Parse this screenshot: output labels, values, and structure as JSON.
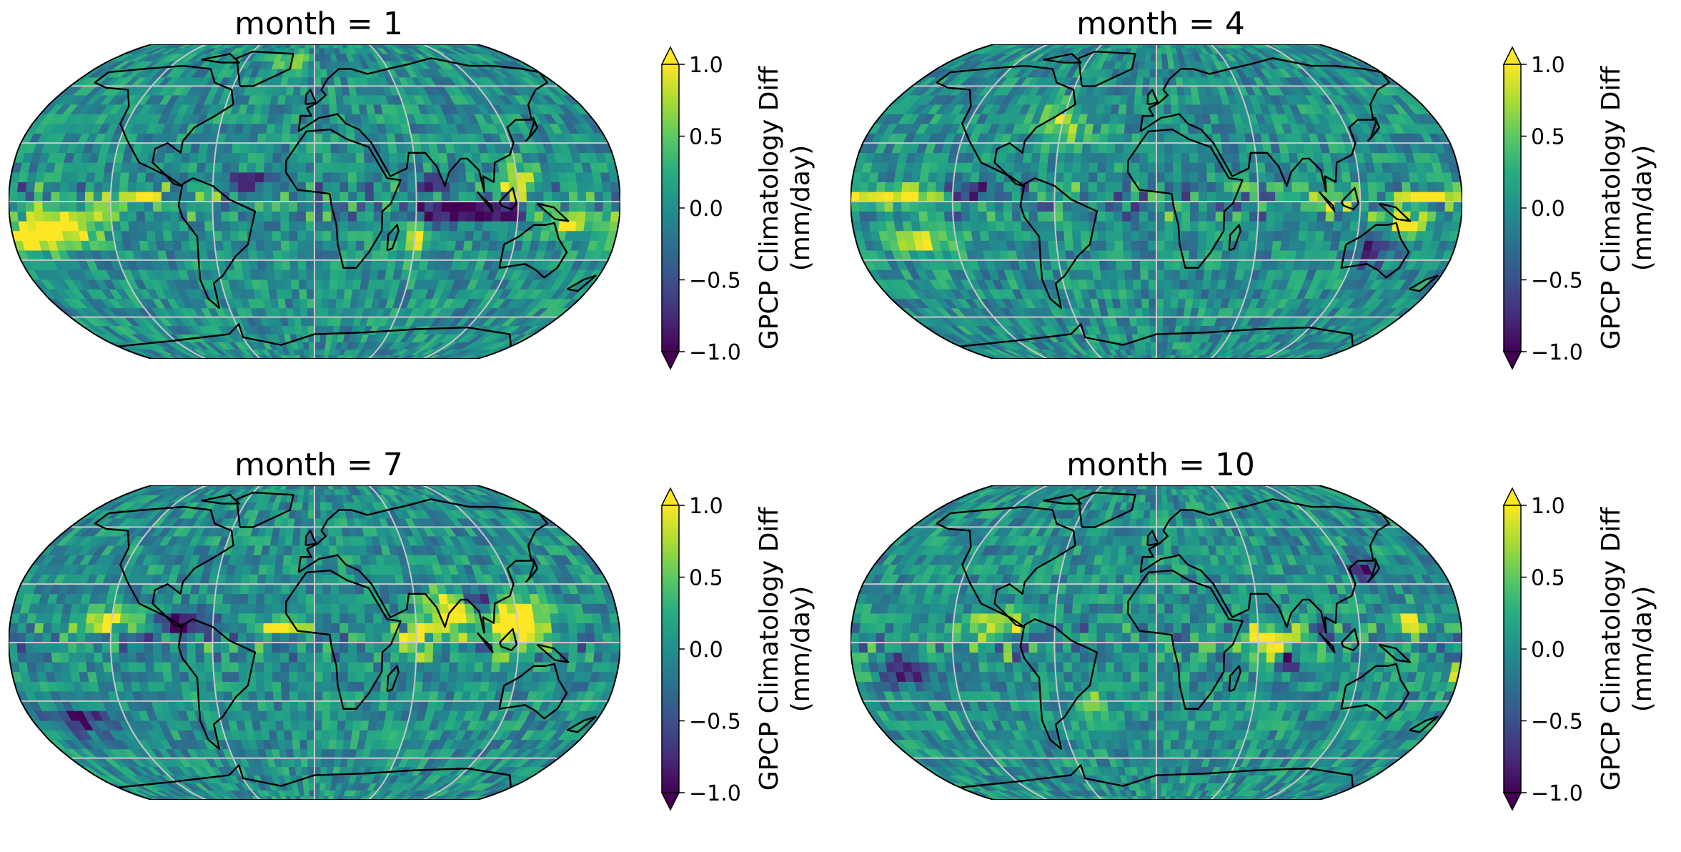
{
  "figure": {
    "panels": [
      {
        "id": "m1",
        "title": "month = 1",
        "seed": 11,
        "anomalies": [
          {
            "lon": -150,
            "lat": -12,
            "amp": 1.4,
            "rlon": 16,
            "rlat": 6
          },
          {
            "lon": -170,
            "lat": -20,
            "amp": 1.2,
            "rlon": 10,
            "rlat": 5
          },
          {
            "lon": -110,
            "lat": 2,
            "amp": 1.0,
            "rlon": 12,
            "rlat": 3
          },
          {
            "lon": 60,
            "lat": -20,
            "amp": 1.1,
            "rlon": 5,
            "rlat": 6
          },
          {
            "lon": 90,
            "lat": -5,
            "amp": -1.3,
            "rlon": 22,
            "rlat": 4
          },
          {
            "lon": 120,
            "lat": 10,
            "amp": 1.0,
            "rlon": 8,
            "rlat": 6
          },
          {
            "lon": 150,
            "lat": -10,
            "amp": 0.9,
            "rlon": 14,
            "rlat": 5
          },
          {
            "lon": -40,
            "lat": 10,
            "amp": -0.9,
            "rlon": 10,
            "rlat": 3
          },
          {
            "lon": 70,
            "lat": 8,
            "amp": -1.0,
            "rlon": 10,
            "rlat": 3
          },
          {
            "lon": -20,
            "lat": 75,
            "amp": 0.8,
            "rlon": 8,
            "rlat": 4
          }
        ]
      },
      {
        "id": "m4",
        "title": "month = 4",
        "seed": 23,
        "anomalies": [
          {
            "lon": -150,
            "lat": 3,
            "amp": 1.1,
            "rlon": 20,
            "rlat": 3
          },
          {
            "lon": 160,
            "lat": 3,
            "amp": 1.0,
            "rlon": 14,
            "rlat": 3
          },
          {
            "lon": 150,
            "lat": -12,
            "amp": 1.3,
            "rlon": 8,
            "rlat": 5
          },
          {
            "lon": -140,
            "lat": -20,
            "amp": 0.9,
            "rlon": 14,
            "rlat": 5
          },
          {
            "lon": -110,
            "lat": 5,
            "amp": -0.8,
            "rlon": 10,
            "rlat": 3
          },
          {
            "lon": -60,
            "lat": 40,
            "amp": 0.7,
            "rlon": 12,
            "rlat": 8
          },
          {
            "lon": 130,
            "lat": -25,
            "amp": -0.9,
            "rlon": 8,
            "rlat": 6
          },
          {
            "lon": 100,
            "lat": 0,
            "amp": 0.8,
            "rlon": 10,
            "rlat": 4
          }
        ]
      },
      {
        "id": "m7",
        "title": "month = 7",
        "seed": 37,
        "anomalies": [
          {
            "lon": 80,
            "lat": 15,
            "amp": 1.2,
            "rlon": 10,
            "rlat": 8
          },
          {
            "lon": 120,
            "lat": 10,
            "amp": 1.4,
            "rlon": 12,
            "rlat": 10
          },
          {
            "lon": -120,
            "lat": 12,
            "amp": 1.1,
            "rlon": 14,
            "rlat": 4
          },
          {
            "lon": -80,
            "lat": 10,
            "amp": -1.1,
            "rlon": 14,
            "rlat": 4
          },
          {
            "lon": -20,
            "lat": 8,
            "amp": 0.8,
            "rlon": 14,
            "rlat": 3
          },
          {
            "lon": 100,
            "lat": 22,
            "amp": -1.0,
            "rlon": 8,
            "rlat": 4
          },
          {
            "lon": 60,
            "lat": 0,
            "amp": 0.9,
            "rlon": 8,
            "rlat": 6
          },
          {
            "lon": -150,
            "lat": -40,
            "amp": -0.8,
            "rlon": 14,
            "rlat": 5
          }
        ]
      },
      {
        "id": "m10",
        "title": "month = 10",
        "seed": 51,
        "anomalies": [
          {
            "lon": -95,
            "lat": 10,
            "amp": 1.3,
            "rlon": 10,
            "rlat": 4
          },
          {
            "lon": 70,
            "lat": 0,
            "amp": 1.1,
            "rlon": 14,
            "rlat": 5
          },
          {
            "lon": 150,
            "lat": 10,
            "amp": 1.2,
            "rlon": 5,
            "rlat": 5
          },
          {
            "lon": 80,
            "lat": -8,
            "amp": -1.0,
            "rlon": 6,
            "rlat": 4
          },
          {
            "lon": 130,
            "lat": 38,
            "amp": -1.0,
            "rlon": 6,
            "rlat": 4
          },
          {
            "lon": -40,
            "lat": -30,
            "amp": 0.8,
            "rlon": 5,
            "rlat": 4
          },
          {
            "lon": 180,
            "lat": -15,
            "amp": 0.9,
            "rlon": 5,
            "rlat": 4
          },
          {
            "lon": -150,
            "lat": -15,
            "amp": -0.7,
            "rlon": 14,
            "rlat": 5
          }
        ]
      }
    ],
    "colorbar": {
      "label_line1": "GPCP Climatology Diff",
      "label_line2": "(mm/day)",
      "ticks": [
        "1.0",
        "0.5",
        "0.0",
        "−0.5",
        "−1.0"
      ],
      "vmin": -1.0,
      "vmax": 1.0,
      "extend": "both",
      "cmap": [
        "#440154",
        "#472c7a",
        "#3b518b",
        "#2c718e",
        "#21908d",
        "#27ad81",
        "#5cc863",
        "#aadc32",
        "#fde725"
      ]
    },
    "colors": {
      "gridlines": "#c8c8c8",
      "coastlines": "#000000",
      "background": "#ffffff"
    },
    "projection": "robinson"
  }
}
